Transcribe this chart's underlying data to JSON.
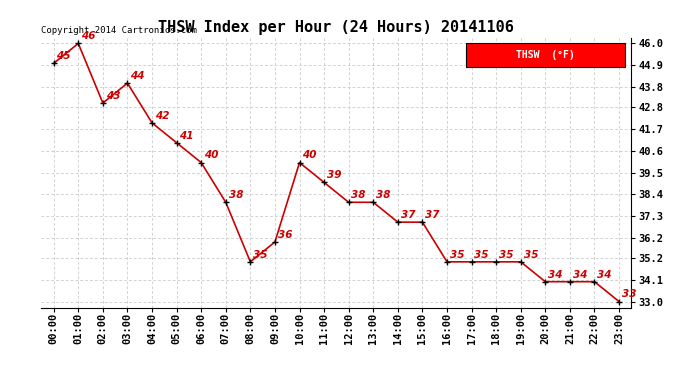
{
  "title": "THSW Index per Hour (24 Hours) 20141106",
  "copyright_text": "Copyright 2014 Cartronics.com",
  "legend_label": "THSW  (°F)",
  "hours": [
    0,
    1,
    2,
    3,
    4,
    5,
    6,
    7,
    8,
    9,
    10,
    11,
    12,
    13,
    14,
    15,
    16,
    17,
    18,
    19,
    20,
    21,
    22,
    23
  ],
  "values": [
    45,
    46,
    43,
    44,
    42,
    41,
    40,
    38,
    35,
    36,
    40,
    39,
    38,
    38,
    37,
    37,
    35,
    35,
    35,
    35,
    34,
    34,
    34,
    33
  ],
  "x_labels": [
    "00:00",
    "01:00",
    "02:00",
    "03:00",
    "04:00",
    "05:00",
    "06:00",
    "07:00",
    "08:00",
    "09:00",
    "10:00",
    "11:00",
    "12:00",
    "13:00",
    "14:00",
    "15:00",
    "16:00",
    "17:00",
    "18:00",
    "19:00",
    "20:00",
    "21:00",
    "22:00",
    "23:00"
  ],
  "y_ticks": [
    33.0,
    34.1,
    35.2,
    36.2,
    37.3,
    38.4,
    39.5,
    40.6,
    41.7,
    42.8,
    43.8,
    44.9,
    46.0
  ],
  "ylim": [
    32.7,
    46.3
  ],
  "line_color": "#cc0000",
  "marker_color": "#000000",
  "bg_color": "#ffffff",
  "grid_color": "#c0c0c0",
  "title_fontsize": 11,
  "tick_fontsize": 7.5,
  "annot_fontsize": 7.5,
  "copyright_fontsize": 6.5
}
